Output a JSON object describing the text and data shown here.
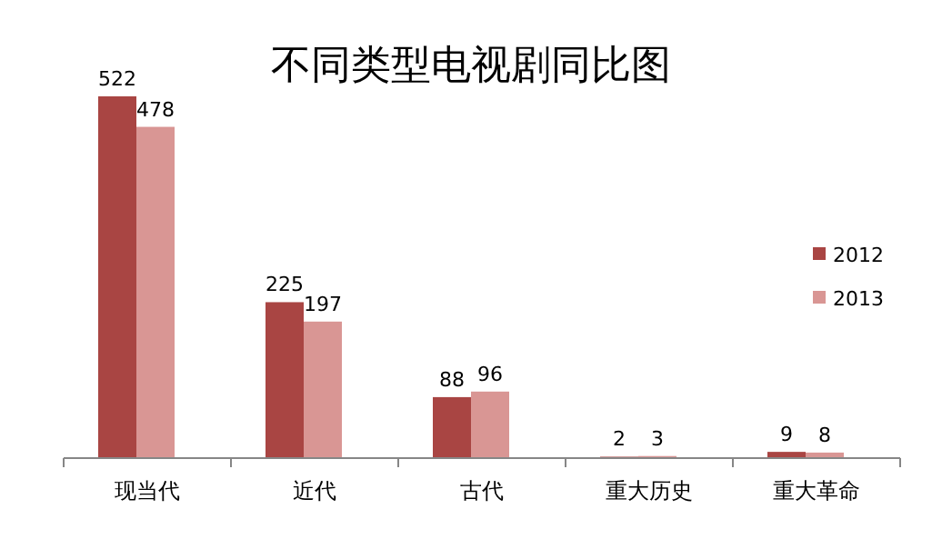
{
  "chart_data": {
    "type": "bar",
    "title": "不同类型电视剧同比图",
    "categories": [
      "现当代",
      "近代",
      "古代",
      "重大历史",
      "重大革命"
    ],
    "series": [
      {
        "name": "2012",
        "color": "#a94543",
        "values": [
          522,
          225,
          88,
          2,
          9
        ]
      },
      {
        "name": "2013",
        "color": "#d99694",
        "values": [
          478,
          197,
          96,
          3,
          8
        ]
      }
    ],
    "data_labels": true,
    "legend": "right"
  }
}
